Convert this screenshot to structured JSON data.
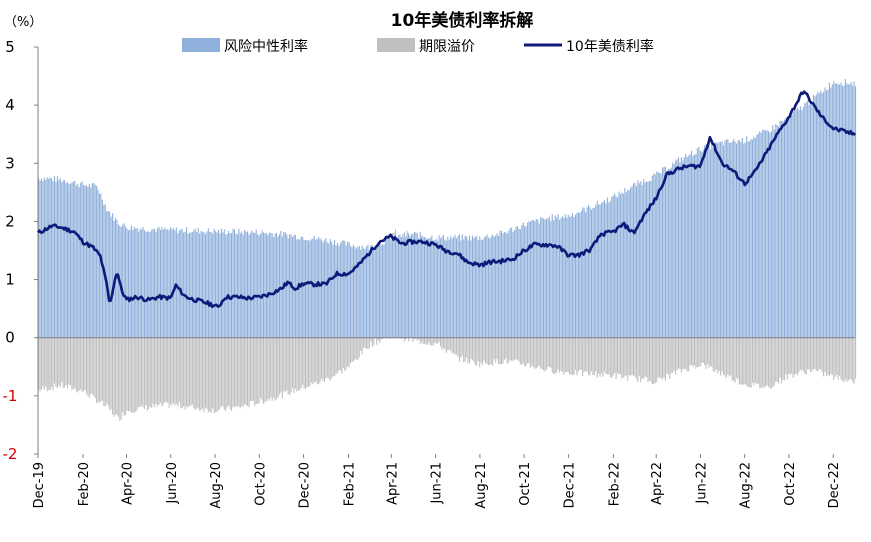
{
  "chart_data": {
    "type": "bar+line",
    "title": "10年美债利率拆解",
    "unit_label": "（%）",
    "ylim": [
      -2,
      5
    ],
    "y_ticks": [
      5,
      4,
      3,
      2,
      1,
      0,
      -1,
      -2
    ],
    "y_tick_labels": [
      "5",
      "4",
      "3",
      "2",
      "1",
      "0",
      "-1",
      "-2"
    ],
    "x_range": [
      "2019-12-01",
      "2022-12-31"
    ],
    "x_ticks": [
      {
        "date": "2019-12-01",
        "label": "Dec-19"
      },
      {
        "date": "2020-02-01",
        "label": "Feb-20"
      },
      {
        "date": "2020-04-01",
        "label": "Apr-20"
      },
      {
        "date": "2020-06-01",
        "label": "Jun-20"
      },
      {
        "date": "2020-08-01",
        "label": "Aug-20"
      },
      {
        "date": "2020-10-01",
        "label": "Oct-20"
      },
      {
        "date": "2020-12-01",
        "label": "Dec-20"
      },
      {
        "date": "2021-02-01",
        "label": "Feb-21"
      },
      {
        "date": "2021-04-01",
        "label": "Apr-21"
      },
      {
        "date": "2021-06-01",
        "label": "Jun-21"
      },
      {
        "date": "2021-08-01",
        "label": "Aug-21"
      },
      {
        "date": "2021-10-01",
        "label": "Oct-21"
      },
      {
        "date": "2021-12-01",
        "label": "Dec-21"
      },
      {
        "date": "2022-02-01",
        "label": "Feb-22"
      },
      {
        "date": "2022-04-01",
        "label": "Apr-22"
      },
      {
        "date": "2022-06-01",
        "label": "Jun-22"
      },
      {
        "date": "2022-08-01",
        "label": "Aug-22"
      },
      {
        "date": "2022-10-01",
        "label": "Oct-22"
      },
      {
        "date": "2022-12-01",
        "label": "Dec-22"
      }
    ],
    "legend": {
      "placement": "top",
      "items": [
        {
          "name": "风险中性利率",
          "style": "bar",
          "color": "#8FB0DB"
        },
        {
          "name": "期限溢价",
          "style": "bar",
          "color": "#BFBFBF"
        },
        {
          "name": "10年美债利率",
          "style": "line",
          "color": "#0D1A7A"
        }
      ]
    },
    "series": [
      {
        "name": "风险中性利率",
        "type": "bar",
        "color": "#8FB0DB",
        "x": [
          "2019-12-01",
          "2020-01-01",
          "2020-02-01",
          "2020-02-20",
          "2020-03-05",
          "2020-03-20",
          "2020-04-01",
          "2020-05-01",
          "2020-06-01",
          "2020-07-01",
          "2020-08-01",
          "2020-09-01",
          "2020-10-01",
          "2020-11-01",
          "2020-12-01",
          "2021-01-01",
          "2021-02-01",
          "2021-03-01",
          "2021-04-01",
          "2021-05-01",
          "2021-06-01",
          "2021-07-01",
          "2021-08-01",
          "2021-09-01",
          "2021-10-01",
          "2021-11-01",
          "2021-12-01",
          "2022-01-01",
          "2022-02-01",
          "2022-03-01",
          "2022-04-01",
          "2022-05-01",
          "2022-06-01",
          "2022-07-01",
          "2022-08-01",
          "2022-09-01",
          "2022-10-01",
          "2022-11-01",
          "2022-12-01",
          "2022-12-31"
        ],
        "values": [
          2.75,
          2.72,
          2.63,
          2.6,
          2.2,
          1.98,
          1.9,
          1.87,
          1.85,
          1.84,
          1.83,
          1.82,
          1.81,
          1.78,
          1.73,
          1.68,
          1.6,
          1.55,
          1.72,
          1.78,
          1.72,
          1.72,
          1.72,
          1.8,
          1.95,
          2.05,
          2.1,
          2.25,
          2.42,
          2.62,
          2.8,
          3.05,
          3.25,
          3.35,
          3.4,
          3.55,
          3.8,
          4.1,
          4.4,
          4.38
        ]
      },
      {
        "name": "期限溢价",
        "type": "bar",
        "color": "#BFBFBF",
        "x": [
          "2019-12-01",
          "2020-01-01",
          "2020-02-01",
          "2020-02-20",
          "2020-03-05",
          "2020-03-20",
          "2020-04-01",
          "2020-05-01",
          "2020-06-01",
          "2020-07-01",
          "2020-08-01",
          "2020-09-01",
          "2020-10-01",
          "2020-11-01",
          "2020-12-01",
          "2021-01-01",
          "2021-02-01",
          "2021-03-01",
          "2021-04-01",
          "2021-05-01",
          "2021-06-01",
          "2021-07-01",
          "2021-08-01",
          "2021-09-01",
          "2021-10-01",
          "2021-11-01",
          "2021-12-01",
          "2022-01-01",
          "2022-02-01",
          "2022-03-01",
          "2022-04-01",
          "2022-05-01",
          "2022-06-01",
          "2022-07-01",
          "2022-08-01",
          "2022-09-01",
          "2022-10-01",
          "2022-11-01",
          "2022-12-01",
          "2022-12-31"
        ],
        "values": [
          -0.9,
          -0.82,
          -0.92,
          -1.08,
          -1.2,
          -1.4,
          -1.25,
          -1.2,
          -1.15,
          -1.2,
          -1.25,
          -1.2,
          -1.1,
          -0.98,
          -0.85,
          -0.72,
          -0.5,
          -0.12,
          0.05,
          -0.05,
          -0.1,
          -0.35,
          -0.45,
          -0.4,
          -0.45,
          -0.55,
          -0.6,
          -0.62,
          -0.65,
          -0.7,
          -0.75,
          -0.58,
          -0.45,
          -0.62,
          -0.8,
          -0.85,
          -0.65,
          -0.55,
          -0.68,
          -0.75
        ]
      },
      {
        "name": "10年美债利率",
        "type": "line",
        "color": "#0D1A7A",
        "x": [
          "2019-12-01",
          "2019-12-20",
          "2020-01-01",
          "2020-01-20",
          "2020-02-01",
          "2020-02-15",
          "2020-02-25",
          "2020-03-05",
          "2020-03-09",
          "2020-03-15",
          "2020-03-19",
          "2020-03-25",
          "2020-04-01",
          "2020-04-15",
          "2020-05-01",
          "2020-05-15",
          "2020-06-01",
          "2020-06-08",
          "2020-06-20",
          "2020-07-01",
          "2020-07-15",
          "2020-08-01",
          "2020-08-05",
          "2020-08-15",
          "2020-09-01",
          "2020-09-15",
          "2020-10-01",
          "2020-10-15",
          "2020-11-01",
          "2020-11-09",
          "2020-11-20",
          "2020-12-01",
          "2020-12-15",
          "2021-01-01",
          "2021-01-15",
          "2021-02-01",
          "2021-02-15",
          "2021-03-01",
          "2021-03-15",
          "2021-03-31",
          "2021-04-15",
          "2021-05-01",
          "2021-05-15",
          "2021-06-01",
          "2021-06-15",
          "2021-07-01",
          "2021-07-15",
          "2021-08-01",
          "2021-08-15",
          "2021-09-01",
          "2021-09-15",
          "2021-10-01",
          "2021-10-15",
          "2021-11-01",
          "2021-11-15",
          "2021-12-01",
          "2021-12-15",
          "2022-01-01",
          "2022-01-15",
          "2022-02-01",
          "2022-02-15",
          "2022-03-01",
          "2022-03-15",
          "2022-04-01",
          "2022-04-15",
          "2022-05-01",
          "2022-05-15",
          "2022-06-01",
          "2022-06-14",
          "2022-07-01",
          "2022-07-15",
          "2022-08-01",
          "2022-08-15",
          "2022-09-01",
          "2022-09-15",
          "2022-10-01",
          "2022-10-21",
          "2022-11-01",
          "2022-11-15",
          "2022-12-01",
          "2022-12-15",
          "2022-12-31"
        ],
        "values": [
          1.8,
          1.92,
          1.9,
          1.82,
          1.65,
          1.55,
          1.4,
          0.9,
          0.55,
          0.95,
          1.15,
          0.82,
          0.65,
          0.7,
          0.65,
          0.7,
          0.68,
          0.9,
          0.72,
          0.66,
          0.62,
          0.55,
          0.52,
          0.7,
          0.7,
          0.68,
          0.7,
          0.75,
          0.85,
          0.95,
          0.85,
          0.93,
          0.92,
          0.92,
          1.1,
          1.1,
          1.25,
          1.45,
          1.65,
          1.74,
          1.62,
          1.65,
          1.65,
          1.6,
          1.5,
          1.45,
          1.3,
          1.25,
          1.3,
          1.32,
          1.35,
          1.5,
          1.6,
          1.6,
          1.58,
          1.42,
          1.42,
          1.52,
          1.78,
          1.82,
          1.95,
          1.8,
          2.1,
          2.4,
          2.8,
          2.9,
          2.95,
          2.95,
          3.45,
          3.0,
          2.88,
          2.65,
          2.85,
          3.2,
          3.5,
          3.8,
          4.25,
          4.05,
          3.8,
          3.6,
          3.55,
          3.5
        ]
      }
    ]
  }
}
